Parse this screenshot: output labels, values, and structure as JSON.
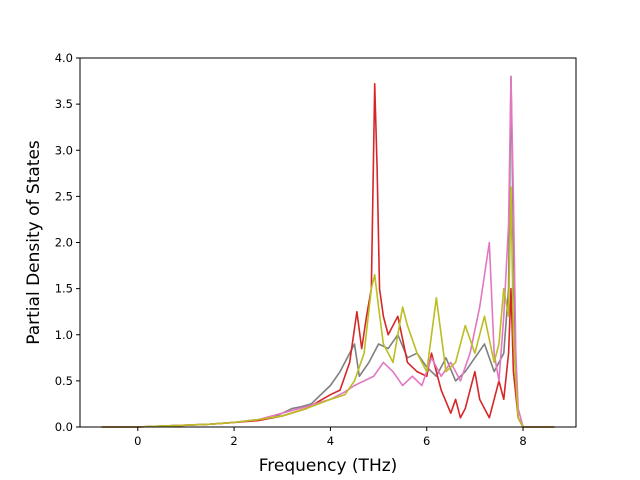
{
  "chart_data": {
    "type": "line",
    "title": "",
    "xlabel": "Frequency (THz)",
    "ylabel": "Partial Density of States",
    "xlim": [
      -1.2,
      9.1
    ],
    "ylim": [
      0.0,
      4.0
    ],
    "xticks": [
      0,
      2,
      4,
      6,
      8
    ],
    "xtick_labels": [
      "0",
      "2",
      "4",
      "6",
      "8"
    ],
    "yticks": [
      0.0,
      0.5,
      1.0,
      1.5,
      2.0,
      2.5,
      3.0,
      3.5,
      4.0
    ],
    "ytick_labels": [
      "0.0",
      "0.5",
      "1.0",
      "1.5",
      "2.0",
      "2.5",
      "3.0",
      "3.5",
      "4.0"
    ],
    "grid": false,
    "legend": "none",
    "series": [
      {
        "color": "#7f7f7f",
        "x": [
          -0.75,
          0.0,
          0.5,
          1.0,
          1.5,
          2.0,
          2.5,
          2.8,
          3.0,
          3.2,
          3.4,
          3.6,
          3.8,
          4.0,
          4.2,
          4.4,
          4.5,
          4.6,
          4.8,
          5.0,
          5.2,
          5.4,
          5.6,
          5.8,
          6.0,
          6.2,
          6.4,
          6.6,
          6.8,
          7.0,
          7.2,
          7.4,
          7.6,
          7.7,
          7.75,
          7.8,
          7.85,
          7.9,
          8.0,
          8.65
        ],
        "y": [
          0.0,
          0.0,
          0.01,
          0.02,
          0.03,
          0.05,
          0.08,
          0.1,
          0.15,
          0.2,
          0.22,
          0.25,
          0.35,
          0.45,
          0.6,
          0.8,
          0.9,
          0.55,
          0.7,
          0.9,
          0.85,
          1.0,
          0.75,
          0.8,
          0.65,
          0.55,
          0.75,
          0.5,
          0.6,
          0.75,
          0.9,
          0.6,
          0.8,
          1.5,
          3.8,
          2.0,
          0.5,
          0.1,
          0.0,
          0.0
        ]
      },
      {
        "color": "#d62728",
        "x": [
          -0.75,
          0.0,
          0.5,
          1.0,
          1.5,
          2.0,
          2.5,
          3.0,
          3.5,
          4.0,
          4.2,
          4.4,
          4.55,
          4.65,
          4.75,
          4.85,
          4.92,
          4.97,
          5.02,
          5.1,
          5.2,
          5.4,
          5.6,
          5.8,
          6.0,
          6.1,
          6.3,
          6.5,
          6.6,
          6.7,
          6.8,
          7.0,
          7.1,
          7.3,
          7.5,
          7.6,
          7.7,
          7.75,
          7.8,
          7.9,
          8.0,
          8.65
        ],
        "y": [
          0.0,
          0.0,
          0.01,
          0.02,
          0.03,
          0.05,
          0.07,
          0.12,
          0.2,
          0.35,
          0.4,
          0.7,
          1.25,
          0.85,
          1.2,
          1.5,
          3.72,
          2.8,
          1.5,
          1.2,
          1.0,
          1.2,
          0.7,
          0.6,
          0.55,
          0.8,
          0.4,
          0.15,
          0.3,
          0.1,
          0.2,
          0.6,
          0.3,
          0.1,
          0.5,
          0.3,
          0.8,
          1.5,
          0.6,
          0.1,
          0.0,
          0.0
        ]
      },
      {
        "color": "#e377c2",
        "x": [
          -0.75,
          0.0,
          0.5,
          1.0,
          1.5,
          2.0,
          2.5,
          3.0,
          3.5,
          4.0,
          4.3,
          4.5,
          4.7,
          4.9,
          5.1,
          5.3,
          5.5,
          5.7,
          5.9,
          6.1,
          6.3,
          6.5,
          6.7,
          6.9,
          7.1,
          7.3,
          7.4,
          7.5,
          7.6,
          7.7,
          7.75,
          7.8,
          7.85,
          7.9,
          8.0,
          8.65
        ],
        "y": [
          0.0,
          0.0,
          0.01,
          0.02,
          0.03,
          0.05,
          0.08,
          0.15,
          0.22,
          0.3,
          0.38,
          0.45,
          0.5,
          0.55,
          0.7,
          0.6,
          0.45,
          0.55,
          0.45,
          0.75,
          0.55,
          0.7,
          0.5,
          0.8,
          1.3,
          2.0,
          0.8,
          0.5,
          1.2,
          2.2,
          3.8,
          2.5,
          0.8,
          0.2,
          0.0,
          0.0
        ]
      },
      {
        "color": "#bcbd22",
        "x": [
          -0.75,
          0.0,
          0.5,
          1.0,
          1.5,
          2.0,
          2.5,
          3.0,
          3.5,
          4.0,
          4.3,
          4.5,
          4.7,
          4.85,
          4.92,
          5.0,
          5.1,
          5.3,
          5.5,
          5.6,
          5.8,
          6.0,
          6.2,
          6.4,
          6.6,
          6.8,
          7.0,
          7.2,
          7.4,
          7.5,
          7.6,
          7.7,
          7.75,
          7.8,
          7.85,
          7.9,
          8.0,
          8.65
        ],
        "y": [
          0.0,
          0.0,
          0.01,
          0.02,
          0.03,
          0.05,
          0.08,
          0.12,
          0.2,
          0.3,
          0.35,
          0.5,
          0.8,
          1.5,
          1.65,
          1.3,
          0.9,
          0.7,
          1.3,
          1.1,
          0.8,
          0.6,
          1.4,
          0.6,
          0.7,
          1.1,
          0.8,
          1.2,
          0.7,
          0.9,
          1.5,
          1.2,
          2.6,
          1.0,
          0.5,
          0.1,
          0.0,
          0.0
        ]
      }
    ]
  }
}
